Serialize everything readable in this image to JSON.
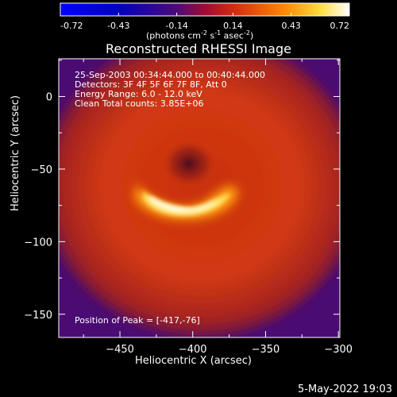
{
  "colorbar": {
    "ticks": [
      "-0.72",
      "-0.43",
      "-0.14",
      "0.14",
      "0.43",
      "0.72"
    ],
    "units_prefix": "(photons cm",
    "units_exp1": "-2",
    "units_mid1": " s",
    "units_exp2": "-1",
    "units_mid2": " asec",
    "units_exp3": "-2",
    "units_suffix": ")"
  },
  "title": "Reconstructed RHESSI Image",
  "info": {
    "line1": "25-Sep-2003 00:34:44.000 to 00:40:44.000",
    "line2": "Detectors: 3F 4F 5F 6F 7F 8F, Att 0",
    "line3": "Energy Range: 6.0 - 12.0 keV",
    "line4": "Clean     Total counts: 3.85E+06",
    "peak": "Position of Peak = [-417,-76]"
  },
  "footer": "5-May-2022 19:03",
  "chart_data": {
    "type": "heatmap",
    "title": "Reconstructed RHESSI Image",
    "xlabel": "Heliocentric X (arcsec)",
    "ylabel": "Heliocentric Y (arcsec)",
    "xlim": [
      -492,
      -299
    ],
    "ylim": [
      -166,
      26
    ],
    "xticks": [
      -450,
      -400,
      -350,
      -300
    ],
    "yticks": [
      0,
      -50,
      -100,
      -150
    ],
    "xtick_labels": [
      "−450",
      "−400",
      "−350",
      "−300"
    ],
    "ytick_labels": [
      "0",
      "−50",
      "−100",
      "−150"
    ],
    "colorbar_range": [
      -0.72,
      0.72
    ],
    "colormap": "hot",
    "peak_position": [
      -417,
      -76
    ],
    "colors": {
      "background": "#000000",
      "outer": "#4a0c72",
      "mid": "#d33a14",
      "peak": "#ffffff"
    }
  }
}
